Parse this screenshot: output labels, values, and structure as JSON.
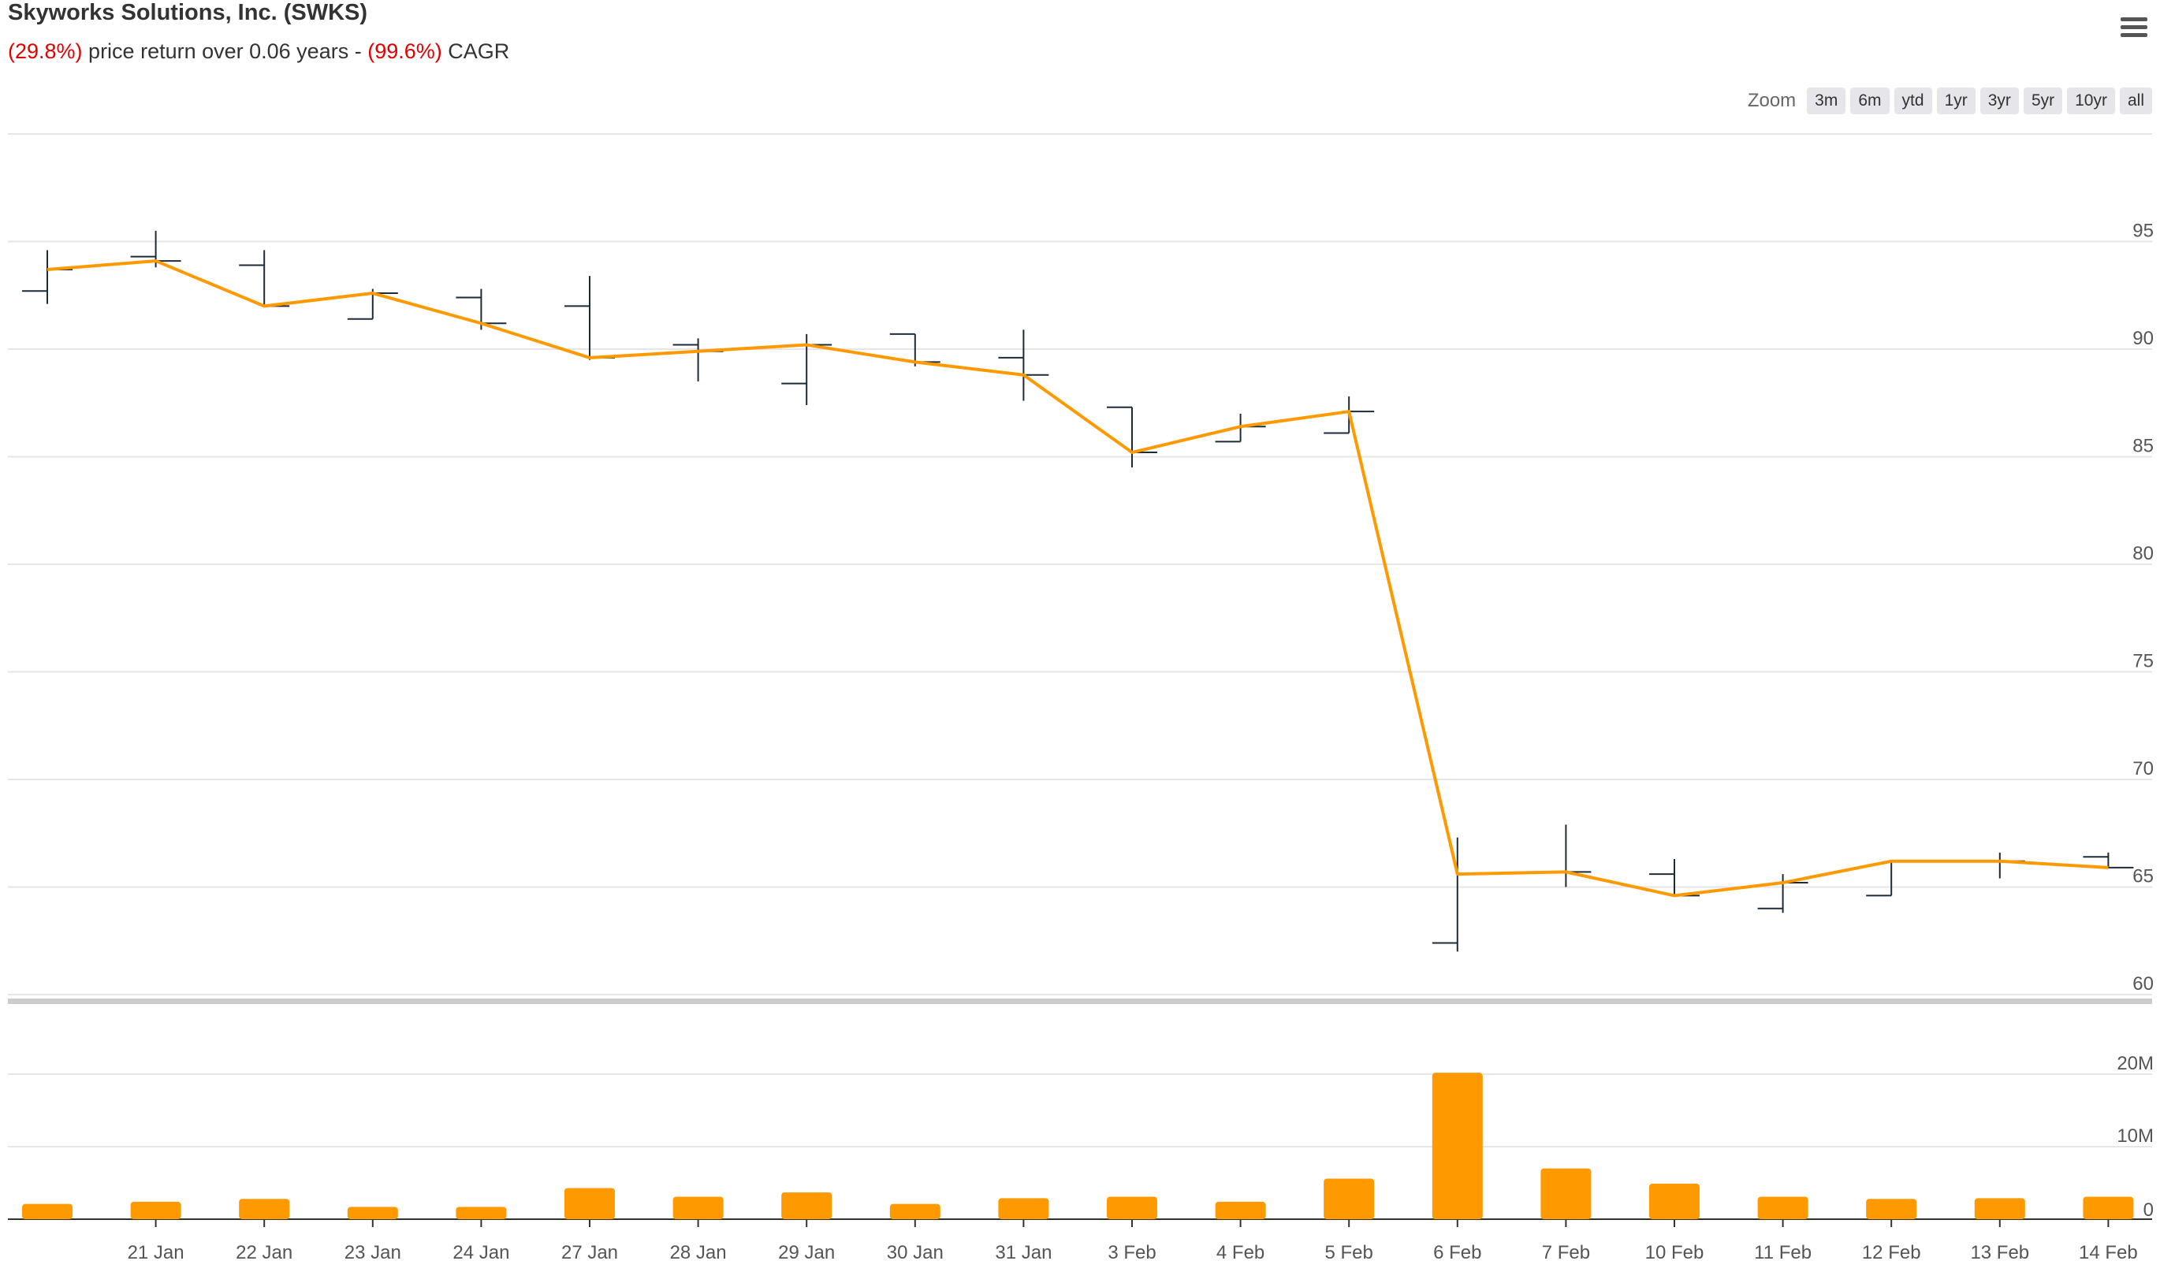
{
  "header": {
    "title": "Skyworks Solutions, Inc. (SWKS)",
    "price_return": "(29.8%)",
    "subtitle_mid": " price return over 0.06 years - ",
    "cagr": "(99.6%)",
    "subtitle_end": " CAGR"
  },
  "zoom": {
    "label": "Zoom",
    "buttons": [
      "3m",
      "6m",
      "ytd",
      "1yr",
      "3yr",
      "5yr",
      "10yr",
      "all"
    ]
  },
  "icons": {
    "menu": "hamburger-menu-icon"
  },
  "colors": {
    "line": "#ff9900",
    "ohlc": "#1c2b3a",
    "volume": "#ff9900",
    "grid": "#e6e6e6",
    "negative": "#e00000"
  },
  "chart_data": [
    {
      "type": "ohlc",
      "categories": [
        "",
        "21 Jan",
        "22 Jan",
        "23 Jan",
        "24 Jan",
        "27 Jan",
        "28 Jan",
        "29 Jan",
        "30 Jan",
        "31 Jan",
        "3 Feb",
        "4 Feb",
        "5 Feb",
        "6 Feb",
        "7 Feb",
        "10 Feb",
        "11 Feb",
        "12 Feb",
        "13 Feb",
        "14 Feb"
      ],
      "open": [
        92.7,
        94.3,
        93.9,
        91.4,
        92.4,
        92.0,
        90.2,
        88.4,
        90.7,
        89.6,
        87.3,
        85.7,
        86.1,
        62.4,
        65.7,
        65.6,
        64.0,
        64.6,
        66.2,
        66.4
      ],
      "high": [
        94.6,
        95.5,
        94.6,
        92.8,
        92.8,
        93.4,
        90.5,
        90.7,
        90.7,
        90.9,
        87.3,
        87.0,
        87.8,
        67.3,
        67.9,
        66.3,
        65.6,
        66.2,
        66.6,
        66.6
      ],
      "low": [
        92.1,
        93.8,
        92.0,
        91.4,
        90.9,
        89.5,
        88.5,
        87.4,
        89.2,
        87.6,
        84.5,
        85.7,
        86.1,
        62.0,
        65.0,
        64.6,
        63.8,
        64.6,
        65.4,
        65.9
      ],
      "close": [
        93.7,
        94.1,
        92.0,
        92.6,
        91.2,
        89.6,
        89.9,
        90.2,
        89.4,
        88.8,
        85.2,
        86.4,
        87.1,
        65.6,
        65.7,
        64.6,
        65.2,
        66.2,
        66.2,
        65.9
      ],
      "ylim": [
        60,
        100
      ],
      "yticks": [
        "95",
        "90",
        "85",
        "80",
        "75",
        "70",
        "65",
        "60"
      ]
    },
    {
      "type": "bar",
      "categories": [
        "",
        "21 Jan",
        "22 Jan",
        "23 Jan",
        "24 Jan",
        "27 Jan",
        "28 Jan",
        "29 Jan",
        "30 Jan",
        "31 Jan",
        "3 Feb",
        "4 Feb",
        "5 Feb",
        "6 Feb",
        "7 Feb",
        "10 Feb",
        "11 Feb",
        "12 Feb",
        "13 Feb",
        "14 Feb"
      ],
      "values": [
        2.1,
        2.4,
        2.8,
        1.7,
        1.7,
        4.3,
        3.1,
        3.7,
        2.1,
        2.9,
        3.1,
        2.4,
        5.6,
        20.2,
        7.0,
        4.9,
        3.1,
        2.8,
        2.9,
        3.1
      ],
      "unit": "M",
      "ylim": [
        0,
        22
      ],
      "yticks": [
        "20M",
        "10M",
        "0"
      ]
    }
  ]
}
